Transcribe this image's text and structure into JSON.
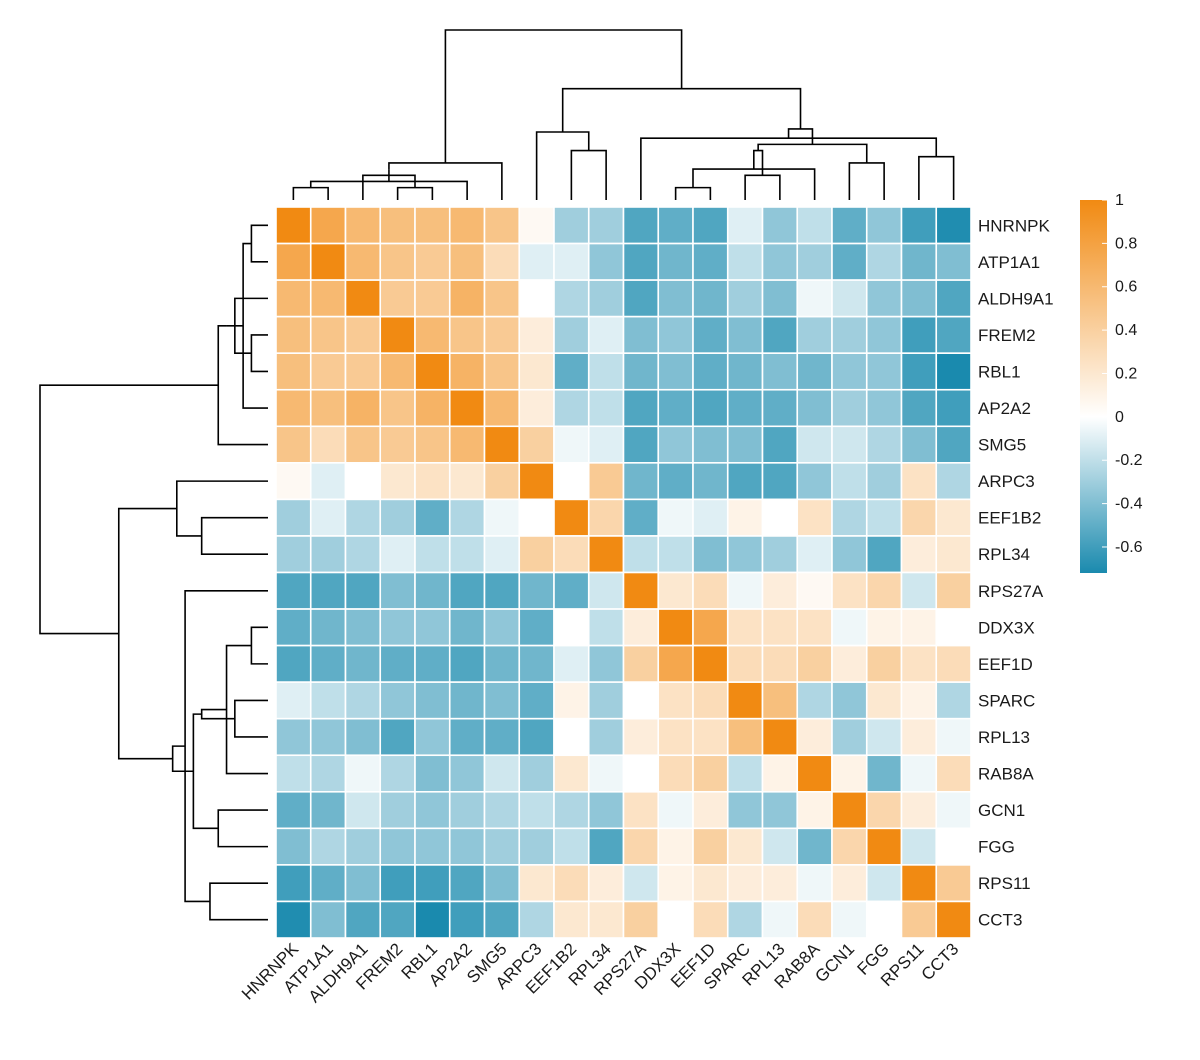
{
  "chart_data": {
    "type": "heatmap",
    "title": "",
    "xlabel": "",
    "ylabel": "",
    "labels": [
      "HNRNPK",
      "ATP1A1",
      "ALDH9A1",
      "FREM2",
      "RBL1",
      "AP2A2",
      "SMG5",
      "ARPC3",
      "EEF1B2",
      "RPL34",
      "RPS27A",
      "DDX3X",
      "EEF1D",
      "SPARC",
      "RPL13",
      "RAB8A",
      "GCN1",
      "FGG",
      "RPS11",
      "CCT3"
    ],
    "matrix": [
      [
        1.0,
        0.75,
        0.6,
        0.55,
        0.55,
        0.6,
        0.5,
        0.05,
        -0.3,
        -0.3,
        -0.55,
        -0.5,
        -0.55,
        -0.1,
        -0.35,
        -0.2,
        -0.5,
        -0.35,
        -0.6,
        -0.7
      ],
      [
        0.75,
        1.0,
        0.6,
        0.5,
        0.45,
        0.55,
        0.3,
        -0.1,
        -0.1,
        -0.35,
        -0.55,
        -0.45,
        -0.5,
        -0.2,
        -0.35,
        -0.3,
        -0.5,
        -0.25,
        -0.45,
        -0.4
      ],
      [
        0.6,
        0.6,
        1.0,
        0.45,
        0.45,
        0.65,
        0.5,
        0.0,
        -0.25,
        -0.3,
        -0.55,
        -0.4,
        -0.45,
        -0.3,
        -0.4,
        -0.05,
        -0.15,
        -0.35,
        -0.4,
        -0.55
      ],
      [
        0.55,
        0.5,
        0.45,
        1.0,
        0.6,
        0.5,
        0.45,
        0.15,
        -0.3,
        -0.1,
        -0.4,
        -0.35,
        -0.5,
        -0.4,
        -0.55,
        -0.3,
        -0.3,
        -0.35,
        -0.6,
        -0.55
      ],
      [
        0.55,
        0.45,
        0.45,
        0.6,
        1.0,
        0.65,
        0.5,
        0.2,
        -0.5,
        -0.2,
        -0.45,
        -0.4,
        -0.5,
        -0.45,
        -0.4,
        -0.45,
        -0.35,
        -0.35,
        -0.6,
        -0.75
      ],
      [
        0.6,
        0.55,
        0.65,
        0.5,
        0.65,
        1.0,
        0.6,
        0.15,
        -0.25,
        -0.2,
        -0.55,
        -0.5,
        -0.55,
        -0.5,
        -0.5,
        -0.4,
        -0.3,
        -0.35,
        -0.55,
        -0.6
      ],
      [
        0.5,
        0.3,
        0.5,
        0.45,
        0.5,
        0.6,
        1.0,
        0.4,
        -0.05,
        -0.1,
        -0.55,
        -0.35,
        -0.4,
        -0.4,
        -0.55,
        -0.15,
        -0.15,
        -0.25,
        -0.4,
        -0.55
      ],
      [
        0.05,
        -0.1,
        0.0,
        0.2,
        0.25,
        0.2,
        0.4,
        1.0,
        0.0,
        0.45,
        -0.45,
        -0.5,
        -0.45,
        -0.55,
        -0.55,
        -0.35,
        -0.2,
        -0.3,
        0.25,
        -0.25
      ],
      [
        -0.3,
        -0.1,
        -0.25,
        -0.3,
        -0.5,
        -0.25,
        -0.05,
        0.0,
        1.0,
        0.35,
        -0.5,
        -0.05,
        -0.1,
        0.1,
        0.0,
        0.25,
        -0.25,
        -0.2,
        0.35,
        0.2
      ],
      [
        -0.3,
        -0.3,
        -0.25,
        -0.1,
        -0.2,
        -0.2,
        -0.1,
        0.4,
        0.3,
        1.0,
        -0.2,
        -0.2,
        -0.4,
        -0.35,
        -0.3,
        -0.1,
        -0.35,
        -0.55,
        0.15,
        0.2
      ],
      [
        -0.55,
        -0.55,
        -0.55,
        -0.4,
        -0.45,
        -0.55,
        -0.55,
        -0.45,
        -0.5,
        -0.15,
        1.0,
        0.2,
        0.3,
        -0.05,
        0.15,
        0.05,
        0.25,
        0.35,
        -0.15,
        0.4
      ],
      [
        -0.5,
        -0.45,
        -0.4,
        -0.35,
        -0.35,
        -0.45,
        -0.35,
        -0.5,
        0.0,
        -0.2,
        0.15,
        1.0,
        0.75,
        0.25,
        0.25,
        0.25,
        -0.05,
        0.1,
        0.1,
        0.0
      ],
      [
        -0.55,
        -0.5,
        -0.45,
        -0.5,
        -0.5,
        -0.55,
        -0.45,
        -0.45,
        -0.1,
        -0.35,
        0.4,
        0.75,
        1.0,
        0.3,
        0.3,
        0.4,
        0.15,
        0.4,
        0.25,
        0.3
      ],
      [
        -0.1,
        -0.2,
        -0.25,
        -0.35,
        -0.4,
        -0.45,
        -0.4,
        -0.5,
        0.1,
        -0.3,
        0.0,
        0.25,
        0.3,
        1.0,
        0.55,
        -0.25,
        -0.35,
        0.2,
        0.1,
        -0.25
      ],
      [
        -0.35,
        -0.35,
        -0.4,
        -0.55,
        -0.35,
        -0.5,
        -0.5,
        -0.55,
        0.0,
        -0.3,
        0.15,
        0.25,
        0.25,
        0.55,
        1.0,
        0.15,
        -0.3,
        -0.15,
        0.15,
        -0.05
      ],
      [
        -0.2,
        -0.25,
        -0.05,
        -0.25,
        -0.4,
        -0.35,
        -0.15,
        -0.3,
        0.2,
        -0.05,
        0.0,
        0.3,
        0.4,
        -0.2,
        0.1,
        1.0,
        0.1,
        -0.45,
        -0.05,
        0.3
      ],
      [
        -0.5,
        -0.45,
        -0.15,
        -0.3,
        -0.35,
        -0.3,
        -0.25,
        -0.2,
        -0.25,
        -0.35,
        0.25,
        -0.05,
        0.15,
        -0.35,
        -0.35,
        0.1,
        1.0,
        0.35,
        0.15,
        -0.05
      ],
      [
        -0.4,
        -0.25,
        -0.3,
        -0.35,
        -0.35,
        -0.35,
        -0.3,
        -0.3,
        -0.2,
        -0.55,
        0.35,
        0.1,
        0.4,
        0.2,
        -0.15,
        -0.45,
        0.35,
        1.0,
        -0.15,
        0.0
      ],
      [
        -0.6,
        -0.5,
        -0.4,
        -0.6,
        -0.6,
        -0.55,
        -0.4,
        0.2,
        0.3,
        0.15,
        -0.15,
        0.1,
        0.2,
        0.15,
        0.15,
        -0.05,
        0.15,
        -0.15,
        1.0,
        0.45
      ],
      [
        -0.7,
        -0.4,
        -0.55,
        -0.55,
        -0.75,
        -0.6,
        -0.55,
        -0.25,
        0.2,
        0.2,
        0.4,
        0.0,
        0.3,
        -0.25,
        -0.05,
        0.3,
        -0.05,
        0.0,
        0.45,
        1.0
      ]
    ],
    "colorbar": {
      "range": [
        -0.72,
        1.0
      ],
      "ticks": [
        1,
        0.8,
        0.6,
        0.4,
        0.2,
        0,
        -0.2,
        -0.4,
        -0.6
      ],
      "tick_labels": [
        "1",
        "0.8",
        "0.6",
        "0.4",
        "0.2",
        "0",
        "-0.2",
        "-0.4",
        "-0.6"
      ],
      "color_negative": "#1a8aae",
      "color_mid": "#ffffff",
      "color_positive": "#f18a12"
    },
    "dendrogram": {
      "merges": [
        [
          0,
          1
        ],
        [
          3,
          4
        ],
        [
          20,
          5
        ],
        [
          21,
          2
        ],
        [
          22,
          23
        ],
        [
          24,
          6
        ],
        [
          11,
          12
        ],
        [
          13,
          14
        ],
        [
          26,
          15
        ],
        [
          16,
          17
        ],
        [
          27,
          28
        ],
        [
          18,
          19
        ],
        [
          29,
          30
        ],
        [
          10,
          31
        ],
        [
          32,
          33
        ],
        [
          8,
          9
        ],
        [
          7,
          35
        ],
        [
          34,
          36
        ],
        [
          25,
          37
        ]
      ],
      "heights": [
        0.2,
        0.2,
        0.3,
        0.4,
        0.5,
        0.6,
        0.2,
        0.4,
        0.5,
        0.6,
        0.8,
        0.7,
        0.9,
        1.0,
        1.15,
        0.8,
        1.1,
        1.8,
        2.75
      ]
    },
    "legend_placement": "right"
  }
}
